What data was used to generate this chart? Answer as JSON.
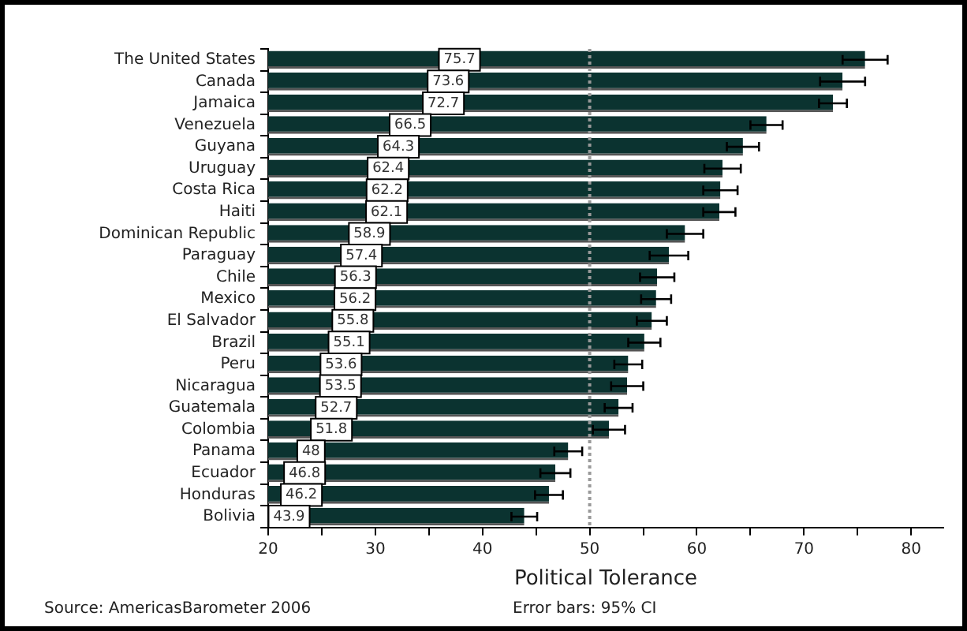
{
  "chart_data": {
    "type": "bar",
    "orientation": "horizontal",
    "xlabel": "Political Tolerance",
    "categories": [
      "The United States",
      "Canada",
      "Jamaica",
      "Venezuela",
      "Guyana",
      "Uruguay",
      "Costa Rica",
      "Haiti",
      "Dominican Republic",
      "Paraguay",
      "Chile",
      "Mexico",
      "El Salvador",
      "Brazil",
      "Peru",
      "Nicaragua",
      "Guatemala",
      "Colombia",
      "Panama",
      "Ecuador",
      "Honduras",
      "Bolivia"
    ],
    "values": [
      75.7,
      73.6,
      72.7,
      66.5,
      64.3,
      62.4,
      62.2,
      62.1,
      58.9,
      57.4,
      56.3,
      56.2,
      55.8,
      55.1,
      53.6,
      53.5,
      52.7,
      51.8,
      48,
      46.8,
      46.2,
      43.9
    ],
    "errors": [
      2.1,
      2.1,
      1.3,
      1.5,
      1.5,
      1.7,
      1.6,
      1.5,
      1.7,
      1.8,
      1.6,
      1.4,
      1.4,
      1.5,
      1.3,
      1.5,
      1.3,
      1.5,
      1.3,
      1.4,
      1.3,
      1.2
    ],
    "color": "#0b3330",
    "data_labels": true,
    "xlim": [
      20,
      83
    ],
    "xticks": [
      20,
      {
        "value": 25,
        "label": null
      },
      30,
      {
        "value": 35,
        "label": null
      },
      40,
      {
        "value": 45,
        "label": null
      },
      50,
      {
        "value": 55,
        "label": null
      },
      60,
      {
        "value": 65,
        "label": null
      },
      70,
      {
        "value": 75,
        "label": null
      },
      80
    ],
    "ref_lines": [
      {
        "axis": "x",
        "value": 50,
        "color": "#999999",
        "line_style": "dotted"
      }
    ],
    "grid": false,
    "legend": false,
    "annotations": [
      "Source: AmericasBarometer 2006",
      "Error bars: 95% CI"
    ]
  }
}
